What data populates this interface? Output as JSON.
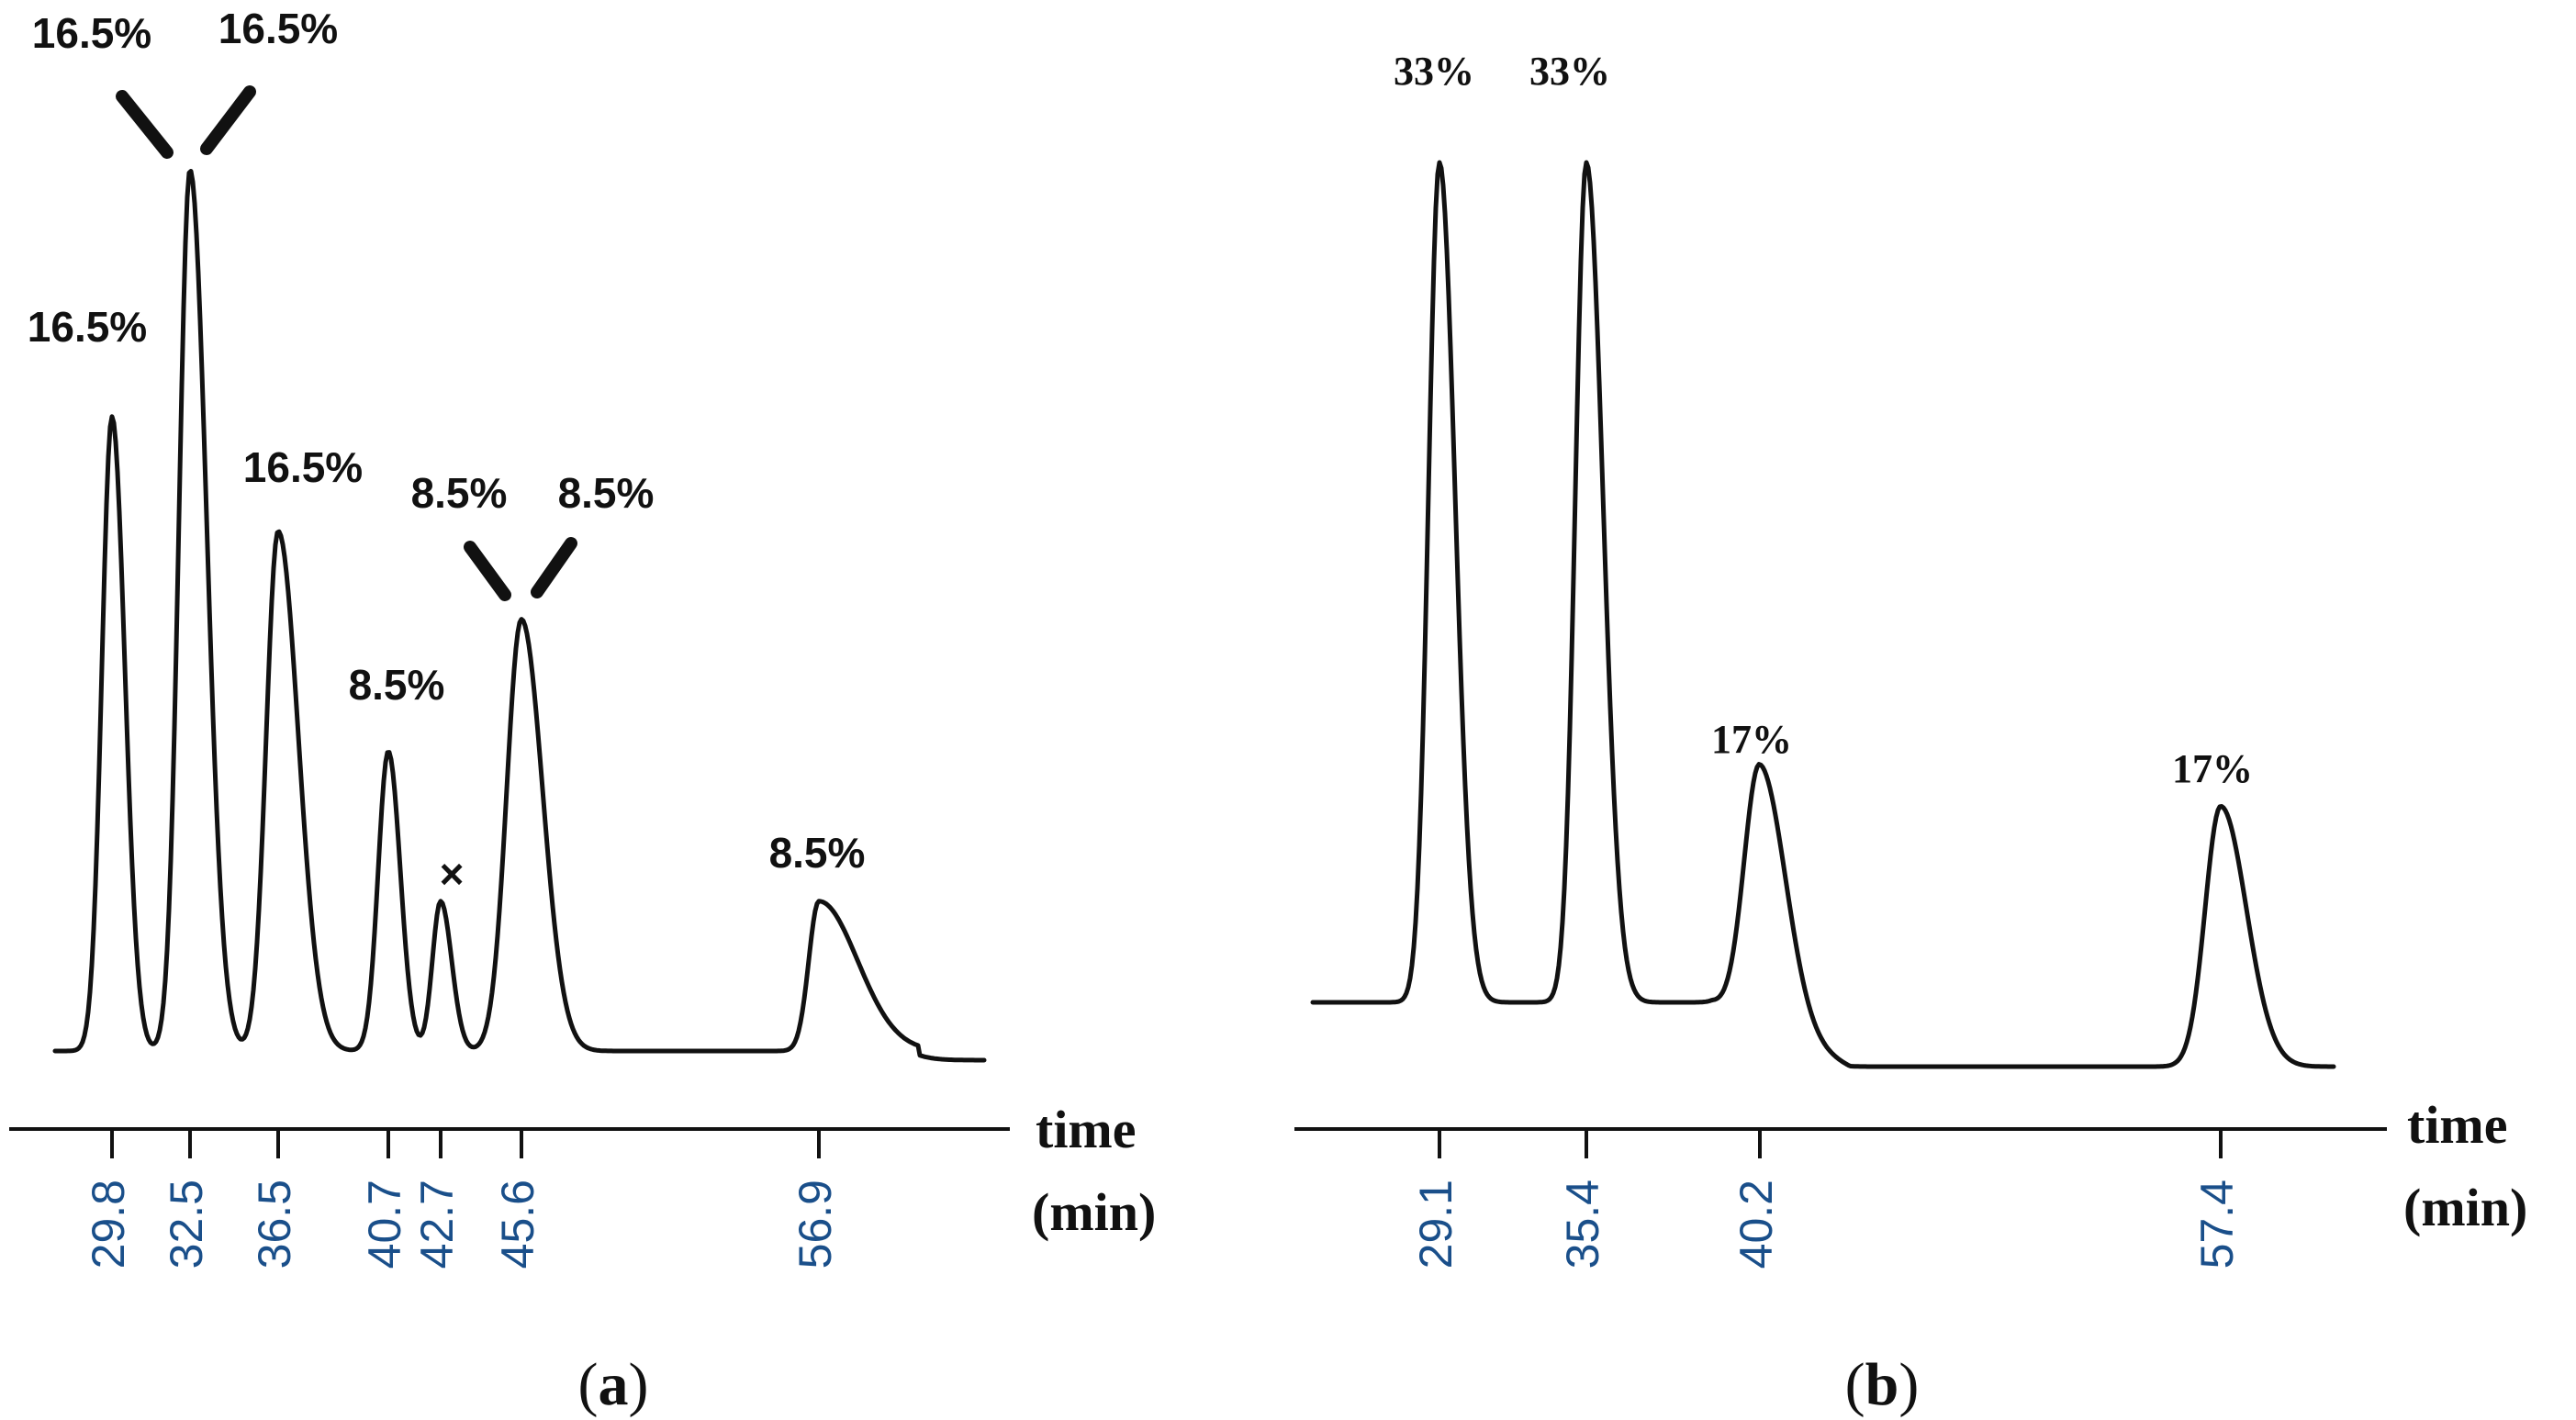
{
  "chart_data": [
    {
      "type": "line",
      "panel_label": "a",
      "xlabel": [
        "time",
        "(min)"
      ],
      "tick_color": "#1a4f8a",
      "peaks": [
        {
          "time": 29.8,
          "tick_label": "29.8",
          "relative_height": 0.72,
          "label": "16.5%"
        },
        {
          "time": 32.5,
          "tick_label": "32.5",
          "relative_height": 1.0,
          "label": "16.5%"
        },
        {
          "time": 36.5,
          "tick_label": "36.5",
          "relative_height": 0.59,
          "label": "16.5%"
        },
        {
          "time": 40.7,
          "tick_label": "40.7",
          "relative_height": 0.34,
          "label": "8.5%"
        },
        {
          "time": 42.7,
          "tick_label": "42.7",
          "relative_height": 0.17,
          "label": "×"
        },
        {
          "time": 45.6,
          "tick_label": "45.6",
          "relative_height": 0.49,
          "label": "8.5%"
        },
        {
          "time": 56.9,
          "tick_label": "56.9",
          "relative_height": 0.17,
          "label": "8.5%"
        }
      ],
      "coelution_labels": [
        {
          "time": 32.5,
          "labels": [
            "16.5%",
            "16.5%"
          ]
        },
        {
          "time": 45.6,
          "labels": [
            "8.5%",
            "8.5%"
          ]
        }
      ]
    },
    {
      "type": "line",
      "panel_label": "b",
      "xlabel": [
        "time",
        "(min)"
      ],
      "tick_color": "#1a4f8a",
      "peaks": [
        {
          "time": 29.1,
          "tick_label": "29.1",
          "relative_height": 1.0,
          "label": "33%"
        },
        {
          "time": 35.4,
          "tick_label": "35.4",
          "relative_height": 1.0,
          "label": "33%"
        },
        {
          "time": 40.2,
          "tick_label": "40.2",
          "relative_height": 0.31,
          "label": "17%"
        },
        {
          "time": 57.4,
          "tick_label": "57.4",
          "relative_height": 0.31,
          "label": "17%"
        }
      ]
    }
  ]
}
